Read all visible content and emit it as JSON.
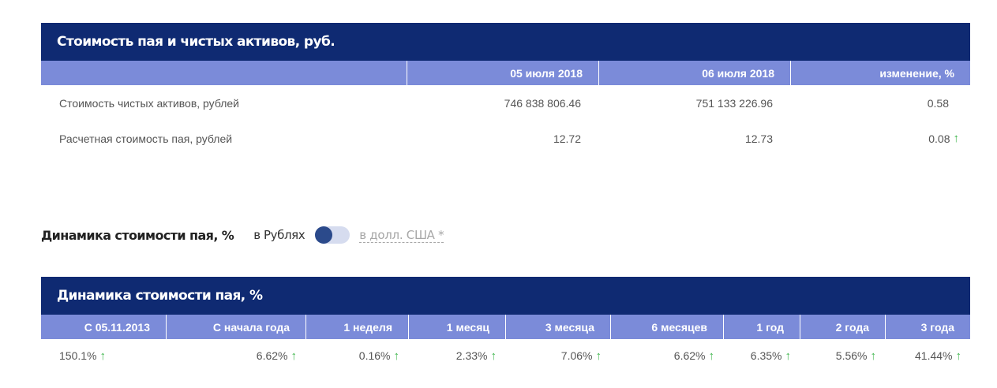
{
  "nav_table": {
    "title": "Стоимость пая и чистых активов, руб.",
    "headers": [
      "",
      "05 июля 2018",
      "06 июля 2018",
      "изменение, %"
    ],
    "rows": [
      {
        "label": "Стоимость чистых активов, рублей",
        "v1": "746 838 806.46",
        "v2": "751 133 226.96",
        "change": "0.58",
        "trend": ""
      },
      {
        "label": "Расчетная стоимость пая, рублей",
        "v1": "12.72",
        "v2": "12.73",
        "change": "0.08",
        "trend": "↑"
      }
    ]
  },
  "dynamics_switch": {
    "title": "Динамика стоимости пая, %",
    "rub_label": "в Рублях",
    "usd_label": "в долл. США *",
    "selected": "rub"
  },
  "dynamics_table": {
    "title": "Динамика стоимости пая, %",
    "headers": [
      "С 05.11.2013",
      "С начала года",
      "1 неделя",
      "1 месяц",
      "3 месяца",
      "6 месяцев",
      "1 год",
      "2 года",
      "3 года"
    ],
    "values": [
      "150.1%",
      "6.62%",
      "0.16%",
      "2.33%",
      "7.06%",
      "6.62%",
      "6.35%",
      "5.56%",
      "41.44%"
    ],
    "trend": "↑"
  },
  "colors": {
    "title_bg": "#0f2a72",
    "header_bg": "#7b8bd9",
    "up_arrow": "#3cb54a",
    "toggle_knob": "#2b4a8b"
  }
}
